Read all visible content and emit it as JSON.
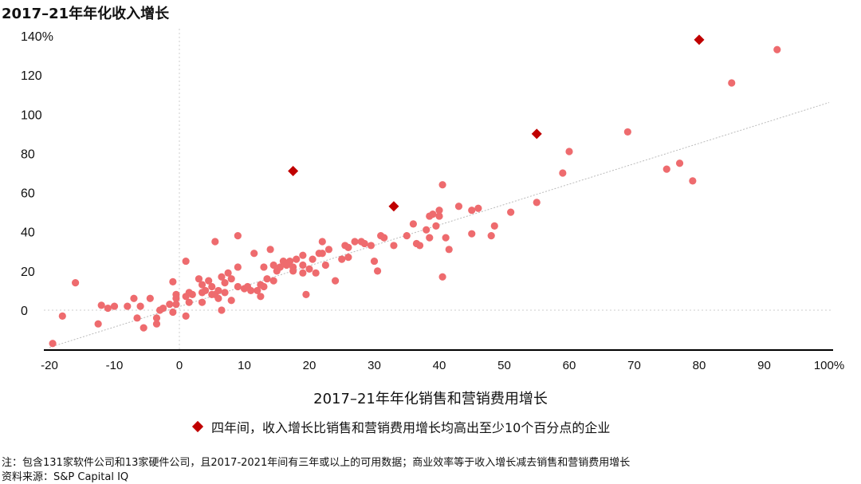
{
  "chart_data": {
    "type": "scatter",
    "title": "2017–21年年化收入增长",
    "xlabel": "2017–21年年化销售和营销费用增长",
    "ylabel": "2017–21年年化收入增长",
    "xlim": [
      -20,
      100
    ],
    "ylim": [
      -20,
      140
    ],
    "x_ticks": [
      "-20",
      "-10",
      "0",
      "10",
      "20",
      "30",
      "40",
      "50",
      "60",
      "70",
      "80",
      "90",
      "100%"
    ],
    "y_ticks": [
      "0",
      "20",
      "40",
      "60",
      "80",
      "100",
      "120",
      "140%"
    ],
    "trendline": [
      [
        -20,
        -19
      ],
      [
        100,
        106
      ]
    ],
    "colors": {
      "companies": "#ee6b6e",
      "highlight": "#c00000",
      "trend": "#bbbbbb",
      "zero": "#cccccc"
    },
    "series": [
      {
        "name": "",
        "marker": "circle",
        "points": [
          [
            -19.5,
            -17
          ],
          [
            -18,
            -3
          ],
          [
            -16,
            14
          ],
          [
            -12.5,
            -7
          ],
          [
            -12,
            2.5
          ],
          [
            -11,
            1
          ],
          [
            -10,
            2
          ],
          [
            -8,
            2
          ],
          [
            -7,
            6
          ],
          [
            -6.5,
            -4
          ],
          [
            -6,
            2
          ],
          [
            -5.5,
            -9
          ],
          [
            -4.5,
            6
          ],
          [
            -3.5,
            -7
          ],
          [
            -3.5,
            -4
          ],
          [
            -3,
            0
          ],
          [
            -2.5,
            1
          ],
          [
            -1.5,
            3
          ],
          [
            -1,
            14.5
          ],
          [
            -1,
            -1
          ],
          [
            -0.5,
            8
          ],
          [
            -0.5,
            6
          ],
          [
            -0.5,
            3
          ],
          [
            1,
            25
          ],
          [
            1,
            -3
          ],
          [
            1,
            7
          ],
          [
            1.5,
            4
          ],
          [
            1.5,
            9
          ],
          [
            2,
            8
          ],
          [
            3,
            16
          ],
          [
            3.5,
            9
          ],
          [
            3.5,
            13
          ],
          [
            3.5,
            4
          ],
          [
            4,
            10
          ],
          [
            4.5,
            15
          ],
          [
            5,
            8
          ],
          [
            5,
            12
          ],
          [
            5.5,
            8
          ],
          [
            5.5,
            35
          ],
          [
            6,
            6
          ],
          [
            6,
            10
          ],
          [
            6.5,
            0
          ],
          [
            6.5,
            17
          ],
          [
            7,
            14
          ],
          [
            7,
            9
          ],
          [
            7.5,
            19
          ],
          [
            8,
            5
          ],
          [
            8,
            16
          ],
          [
            9,
            22
          ],
          [
            9,
            12
          ],
          [
            9,
            38
          ],
          [
            10,
            11
          ],
          [
            10.5,
            12
          ],
          [
            11,
            10
          ],
          [
            11.5,
            29
          ],
          [
            12,
            10
          ],
          [
            12.5,
            13
          ],
          [
            12.5,
            7
          ],
          [
            13,
            22
          ],
          [
            13,
            12
          ],
          [
            13.5,
            16
          ],
          [
            14,
            31
          ],
          [
            14.5,
            23
          ],
          [
            14.5,
            15
          ],
          [
            15,
            20
          ],
          [
            15.5,
            22
          ],
          [
            16,
            25
          ],
          [
            16.5,
            23
          ],
          [
            17,
            25
          ],
          [
            17.5,
            22
          ],
          [
            17.5,
            20
          ],
          [
            18,
            26
          ],
          [
            19,
            19
          ],
          [
            19,
            23
          ],
          [
            19,
            28
          ],
          [
            19.5,
            8
          ],
          [
            20,
            21
          ],
          [
            20.5,
            26
          ],
          [
            21,
            19
          ],
          [
            21.5,
            29
          ],
          [
            22,
            35
          ],
          [
            22,
            29
          ],
          [
            22.5,
            23
          ],
          [
            23,
            31
          ],
          [
            24,
            15
          ],
          [
            25,
            26
          ],
          [
            25.5,
            33
          ],
          [
            26,
            32
          ],
          [
            26,
            27
          ],
          [
            27,
            35
          ],
          [
            28,
            35
          ],
          [
            28.5,
            34
          ],
          [
            29.5,
            33
          ],
          [
            30,
            25
          ],
          [
            30.5,
            20
          ],
          [
            31,
            38
          ],
          [
            31.5,
            37
          ],
          [
            33,
            33
          ],
          [
            35,
            38
          ],
          [
            36,
            44
          ],
          [
            36.5,
            34
          ],
          [
            37,
            33
          ],
          [
            38,
            41
          ],
          [
            38.5,
            37
          ],
          [
            38.5,
            48
          ],
          [
            39,
            49
          ],
          [
            39.5,
            43
          ],
          [
            40,
            51
          ],
          [
            40,
            48
          ],
          [
            40.5,
            17
          ],
          [
            40.5,
            64
          ],
          [
            41,
            37
          ],
          [
            41.5,
            31
          ],
          [
            43,
            53
          ],
          [
            45,
            51
          ],
          [
            45,
            39
          ],
          [
            46,
            52
          ],
          [
            48,
            38
          ],
          [
            48.5,
            43
          ],
          [
            51,
            50
          ],
          [
            55,
            55
          ],
          [
            59,
            70
          ],
          [
            60,
            81
          ],
          [
            69,
            91
          ],
          [
            75,
            72
          ],
          [
            77,
            75
          ],
          [
            79,
            66
          ],
          [
            85,
            116
          ],
          [
            92,
            133
          ]
        ]
      },
      {
        "name": "四年间，收入增长比销售和营销费用增长均高出至少10个百分点的企业",
        "marker": "diamond",
        "points": [
          [
            17.5,
            71
          ],
          [
            33,
            53
          ],
          [
            55,
            90
          ],
          [
            80,
            138
          ]
        ]
      }
    ]
  },
  "notes": {
    "note": "注：包含131家软件公司和13家硬件公司，且2017-2021年间有三年或以上的可用数据；商业效率等于收入增长减去销售和营销费用增长",
    "source": "资料来源：S&P Capital IQ"
  }
}
